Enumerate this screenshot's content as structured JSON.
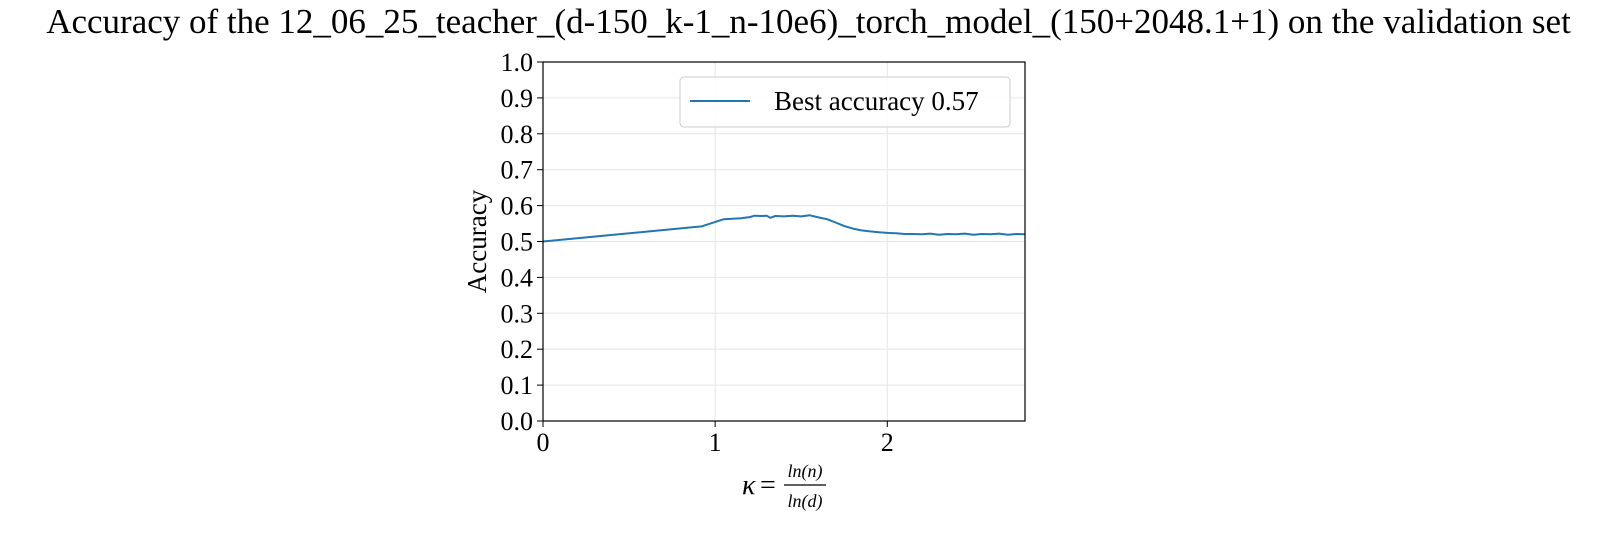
{
  "chart_data": {
    "type": "line",
    "title": "Accuracy of the 12_06_25_teacher_(d-150_k-1_n-10e6)_torch_model_(150+2048.1+1) on the validation set",
    "xlabel": {
      "symbol": "κ",
      "equals": "=",
      "numerator": "ln(n)",
      "denominator": "ln(d)"
    },
    "ylabel": "Accuracy",
    "xlim": [
      0,
      2.8
    ],
    "ylim": [
      0,
      1.0
    ],
    "x_ticks": [
      {
        "value": 0,
        "label": "0"
      },
      {
        "value": 1,
        "label": "1"
      },
      {
        "value": 2,
        "label": "2"
      }
    ],
    "y_ticks": [
      {
        "value": 0.0,
        "label": "0.0"
      },
      {
        "value": 0.1,
        "label": "0.1"
      },
      {
        "value": 0.2,
        "label": "0.2"
      },
      {
        "value": 0.3,
        "label": "0.3"
      },
      {
        "value": 0.4,
        "label": "0.4"
      },
      {
        "value": 0.5,
        "label": "0.5"
      },
      {
        "value": 0.6,
        "label": "0.6"
      },
      {
        "value": 0.7,
        "label": "0.7"
      },
      {
        "value": 0.8,
        "label": "0.8"
      },
      {
        "value": 0.9,
        "label": "0.9"
      },
      {
        "value": 1.0,
        "label": "1.0"
      }
    ],
    "grid": true,
    "legend_position": "upper-right",
    "series": [
      {
        "name": "Best accuracy 0.57",
        "color": "#1f77b4",
        "x": [
          0,
          0.92,
          1.05,
          1.15,
          1.2,
          1.23,
          1.27,
          1.3,
          1.32,
          1.35,
          1.4,
          1.45,
          1.5,
          1.55,
          1.6,
          1.65,
          1.7,
          1.75,
          1.8,
          1.85,
          1.9,
          1.95,
          2.0,
          2.05,
          2.1,
          2.15,
          2.2,
          2.25,
          2.3,
          2.35,
          2.4,
          2.45,
          2.5,
          2.55,
          2.6,
          2.65,
          2.7,
          2.75,
          2.8
        ],
        "y": [
          0.5,
          0.542,
          0.562,
          0.565,
          0.568,
          0.572,
          0.571,
          0.572,
          0.566,
          0.571,
          0.57,
          0.572,
          0.57,
          0.573,
          0.567,
          0.562,
          0.553,
          0.543,
          0.536,
          0.531,
          0.528,
          0.526,
          0.524,
          0.523,
          0.521,
          0.521,
          0.52,
          0.522,
          0.519,
          0.521,
          0.52,
          0.522,
          0.519,
          0.521,
          0.52,
          0.522,
          0.519,
          0.521,
          0.52
        ]
      }
    ]
  }
}
